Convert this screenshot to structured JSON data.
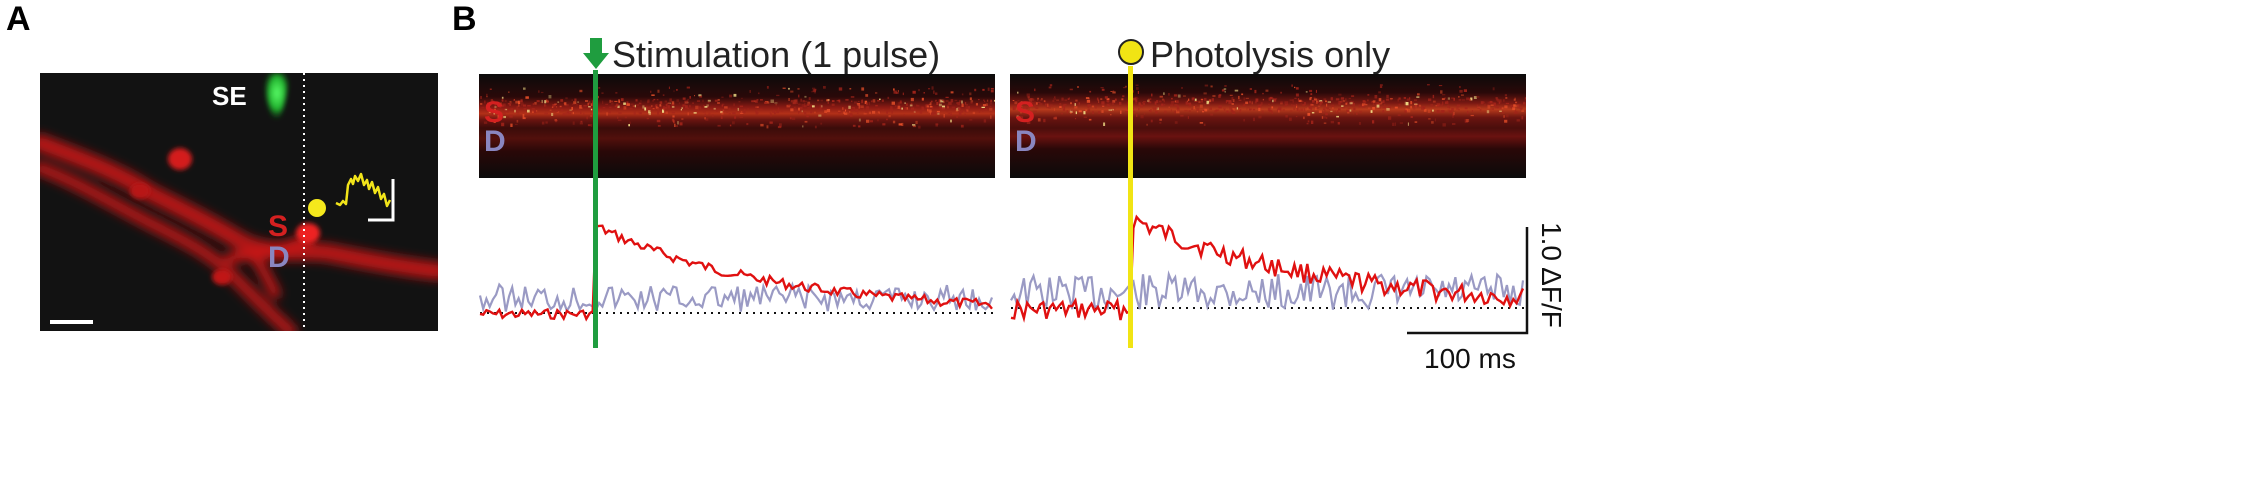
{
  "panels": {
    "a": {
      "letter": "A",
      "se_label": "SE",
      "s_label": "S",
      "d_label": "D"
    },
    "b": {
      "letter": "B",
      "left": {
        "title": "Stimulation (1 pulse)",
        "marker_icon": "green-down-arrow-icon",
        "marker_color": "#1f9d3f",
        "s_label": "S",
        "d_label": "D"
      },
      "right": {
        "title": "Photolysis only",
        "marker_icon": "yellow-circle-icon",
        "marker_color": "#f1e414",
        "s_label": "S",
        "d_label": "D"
      },
      "scale_time": "100 ms",
      "scale_df": "1.0 ΔF/F"
    }
  },
  "colors": {
    "spine_trace": "#e01010",
    "dendrite_trace": "#9a9ac4",
    "s_label": "#d42020",
    "d_label": "#8a86c0",
    "micrograph_bg": "#141414",
    "dendrite_red": "#d81818",
    "se_green": "#27d13a"
  }
}
